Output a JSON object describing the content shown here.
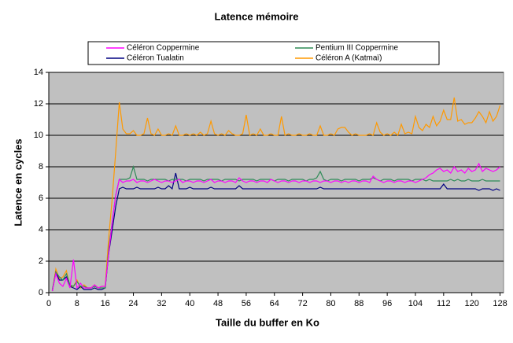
{
  "chart_data": {
    "type": "line",
    "title": "Latence mémoire",
    "x_label": "Taille du buffer en Ko",
    "y_label": "Latence en cycles",
    "x": [
      1,
      2,
      3,
      4,
      5,
      6,
      7,
      8,
      9,
      10,
      11,
      12,
      13,
      14,
      15,
      16,
      17,
      18,
      19,
      20,
      21,
      22,
      23,
      24,
      25,
      26,
      27,
      28,
      29,
      30,
      31,
      32,
      33,
      34,
      35,
      36,
      37,
      38,
      39,
      40,
      41,
      42,
      43,
      44,
      45,
      46,
      47,
      48,
      49,
      50,
      51,
      52,
      53,
      54,
      55,
      56,
      57,
      58,
      59,
      60,
      61,
      62,
      63,
      64,
      65,
      66,
      67,
      68,
      69,
      70,
      71,
      72,
      73,
      74,
      75,
      76,
      77,
      78,
      79,
      80,
      81,
      82,
      83,
      84,
      85,
      86,
      87,
      88,
      89,
      90,
      91,
      92,
      93,
      94,
      95,
      96,
      97,
      98,
      99,
      100,
      101,
      102,
      103,
      104,
      105,
      106,
      107,
      108,
      109,
      110,
      111,
      112,
      113,
      114,
      115,
      116,
      117,
      118,
      119,
      120,
      121,
      122,
      123,
      124,
      125,
      126,
      127,
      128
    ],
    "series": [
      {
        "name": "Céléron Coppermine",
        "color": "#ff00ff",
        "values": [
          0.1,
          1.2,
          0.6,
          0.4,
          0.9,
          0.3,
          2.1,
          0.3,
          0.6,
          0.3,
          0.3,
          0.3,
          0.5,
          0.3,
          0.4,
          0.4,
          2.5,
          4.5,
          6.2,
          7.2,
          7.0,
          7.1,
          7.1,
          7.2,
          7.0,
          7.1,
          7.1,
          7.0,
          7.1,
          7.2,
          7.1,
          7.0,
          7.1,
          7.1,
          7.0,
          7.1,
          7.2,
          7.0,
          7.1,
          7.1,
          7.0,
          7.1,
          7.1,
          7.0,
          7.1,
          7.2,
          7.0,
          7.1,
          7.1,
          7.0,
          7.1,
          7.1,
          7.0,
          7.3,
          7.1,
          7.0,
          7.1,
          7.1,
          7.0,
          7.1,
          7.1,
          7.0,
          7.2,
          7.1,
          7.0,
          7.1,
          7.1,
          7.0,
          7.1,
          7.1,
          7.0,
          7.1,
          7.1,
          7.0,
          7.1,
          7.1,
          7.0,
          7.1,
          7.1,
          7.0,
          7.1,
          7.1,
          7.0,
          7.1,
          7.0,
          7.1,
          7.1,
          7.0,
          7.1,
          7.1,
          7.0,
          7.4,
          7.2,
          7.1,
          7.0,
          7.1,
          7.1,
          7.0,
          7.1,
          7.1,
          7.0,
          7.1,
          7.1,
          7.0,
          7.1,
          7.2,
          7.3,
          7.5,
          7.6,
          7.8,
          7.9,
          7.7,
          7.8,
          7.6,
          8.0,
          7.7,
          7.8,
          7.6,
          7.9,
          7.7,
          7.8,
          8.2,
          7.7,
          7.9,
          7.8,
          7.7,
          7.8,
          8.0
        ]
      },
      {
        "name": "Pentium III Coppermine",
        "color": "#2e8b57",
        "values": [
          0.2,
          1.3,
          1.0,
          0.8,
          1.2,
          0.5,
          0.4,
          0.7,
          0.4,
          0.4,
          0.3,
          0.3,
          0.4,
          0.3,
          0.3,
          0.3,
          2.8,
          4.5,
          6.2,
          7.2,
          7.2,
          7.2,
          7.3,
          8.0,
          7.2,
          7.2,
          7.2,
          7.1,
          7.2,
          7.2,
          7.2,
          7.2,
          7.2,
          7.1,
          7.2,
          7.2,
          7.2,
          7.2,
          7.1,
          7.2,
          7.2,
          7.2,
          7.2,
          7.1,
          7.2,
          7.2,
          7.2,
          7.2,
          7.1,
          7.2,
          7.2,
          7.2,
          7.2,
          7.1,
          7.2,
          7.2,
          7.2,
          7.2,
          7.1,
          7.2,
          7.2,
          7.2,
          7.2,
          7.1,
          7.2,
          7.2,
          7.2,
          7.1,
          7.2,
          7.2,
          7.2,
          7.2,
          7.1,
          7.2,
          7.2,
          7.3,
          7.7,
          7.2,
          7.1,
          7.2,
          7.2,
          7.2,
          7.1,
          7.2,
          7.2,
          7.2,
          7.2,
          7.1,
          7.2,
          7.2,
          7.2,
          7.3,
          7.2,
          7.1,
          7.2,
          7.2,
          7.2,
          7.1,
          7.2,
          7.2,
          7.2,
          7.2,
          7.1,
          7.2,
          7.2,
          7.2,
          7.1,
          7.2,
          7.1,
          7.1,
          7.1,
          7.1,
          7.1,
          7.2,
          7.1,
          7.2,
          7.1,
          7.1,
          7.2,
          7.1,
          7.1,
          7.1,
          7.2,
          7.1,
          7.1,
          7.1,
          7.1,
          7.1
        ]
      },
      {
        "name": "Céléron Tualatin",
        "color": "#000080",
        "values": [
          0.1,
          1.3,
          0.8,
          0.8,
          1.0,
          0.4,
          0.3,
          0.2,
          0.4,
          0.2,
          0.2,
          0.2,
          0.3,
          0.2,
          0.2,
          0.3,
          2.5,
          4.0,
          5.5,
          6.6,
          6.7,
          6.6,
          6.6,
          6.6,
          6.7,
          6.6,
          6.6,
          6.6,
          6.6,
          6.6,
          6.7,
          6.6,
          6.6,
          6.8,
          6.6,
          7.6,
          6.6,
          6.6,
          6.6,
          6.7,
          6.6,
          6.6,
          6.6,
          6.6,
          6.6,
          6.7,
          6.6,
          6.6,
          6.6,
          6.6,
          6.6,
          6.6,
          6.6,
          6.8,
          6.6,
          6.6,
          6.6,
          6.6,
          6.6,
          6.6,
          6.6,
          6.6,
          6.6,
          6.6,
          6.6,
          6.6,
          6.6,
          6.6,
          6.6,
          6.6,
          6.6,
          6.6,
          6.6,
          6.6,
          6.6,
          6.6,
          6.7,
          6.6,
          6.6,
          6.6,
          6.6,
          6.6,
          6.6,
          6.6,
          6.6,
          6.6,
          6.6,
          6.6,
          6.6,
          6.6,
          6.6,
          6.6,
          6.6,
          6.6,
          6.6,
          6.6,
          6.6,
          6.6,
          6.6,
          6.6,
          6.6,
          6.6,
          6.6,
          6.6,
          6.6,
          6.6,
          6.6,
          6.6,
          6.6,
          6.6,
          6.6,
          6.9,
          6.6,
          6.6,
          6.6,
          6.6,
          6.6,
          6.6,
          6.6,
          6.6,
          6.6,
          6.5,
          6.6,
          6.6,
          6.6,
          6.5,
          6.6,
          6.5
        ]
      },
      {
        "name": "Céléron A (Katmaï)",
        "color": "#ff9900",
        "values": [
          0.1,
          1.5,
          0.9,
          1.0,
          1.4,
          0.4,
          0.4,
          0.8,
          0.3,
          0.5,
          0.3,
          0.3,
          0.5,
          0.3,
          0.4,
          0.4,
          3.5,
          6.0,
          9.0,
          12.1,
          10.4,
          10.1,
          10.1,
          10.3,
          10.0,
          10.0,
          10.1,
          11.1,
          10.1,
          10.0,
          10.4,
          10.0,
          10.0,
          10.1,
          10.0,
          10.6,
          10.0,
          10.0,
          10.1,
          10.0,
          10.1,
          10.0,
          10.2,
          10.0,
          10.1,
          10.9,
          10.1,
          10.0,
          10.1,
          10.0,
          10.3,
          10.1,
          10.0,
          10.0,
          10.1,
          11.3,
          10.0,
          10.1,
          10.0,
          10.4,
          10.0,
          10.0,
          10.1,
          10.0,
          10.0,
          11.2,
          10.0,
          10.1,
          10.0,
          10.0,
          10.1,
          10.0,
          10.0,
          10.1,
          10.0,
          10.0,
          10.6,
          10.0,
          10.0,
          10.1,
          10.0,
          10.4,
          10.5,
          10.5,
          10.2,
          10.0,
          10.1,
          10.0,
          10.0,
          10.0,
          10.1,
          10.0,
          10.8,
          10.2,
          10.0,
          10.1,
          10.0,
          10.2,
          10.0,
          10.7,
          10.1,
          10.2,
          10.1,
          11.2,
          10.5,
          10.3,
          10.7,
          10.5,
          11.2,
          10.6,
          10.9,
          11.6,
          11.0,
          11.0,
          12.4,
          10.9,
          11.0,
          10.7,
          10.8,
          10.8,
          11.1,
          11.5,
          11.2,
          10.8,
          11.5,
          10.9,
          11.2,
          11.9
        ]
      }
    ],
    "xlim": [
      0,
      129
    ],
    "xticks": [
      0,
      8,
      16,
      24,
      32,
      40,
      48,
      56,
      64,
      72,
      80,
      88,
      96,
      104,
      112,
      120,
      128
    ],
    "ylim": [
      0,
      14
    ],
    "yticks": [
      0,
      2,
      4,
      6,
      8,
      10,
      12,
      14
    ],
    "grid": true,
    "legend": "top"
  }
}
